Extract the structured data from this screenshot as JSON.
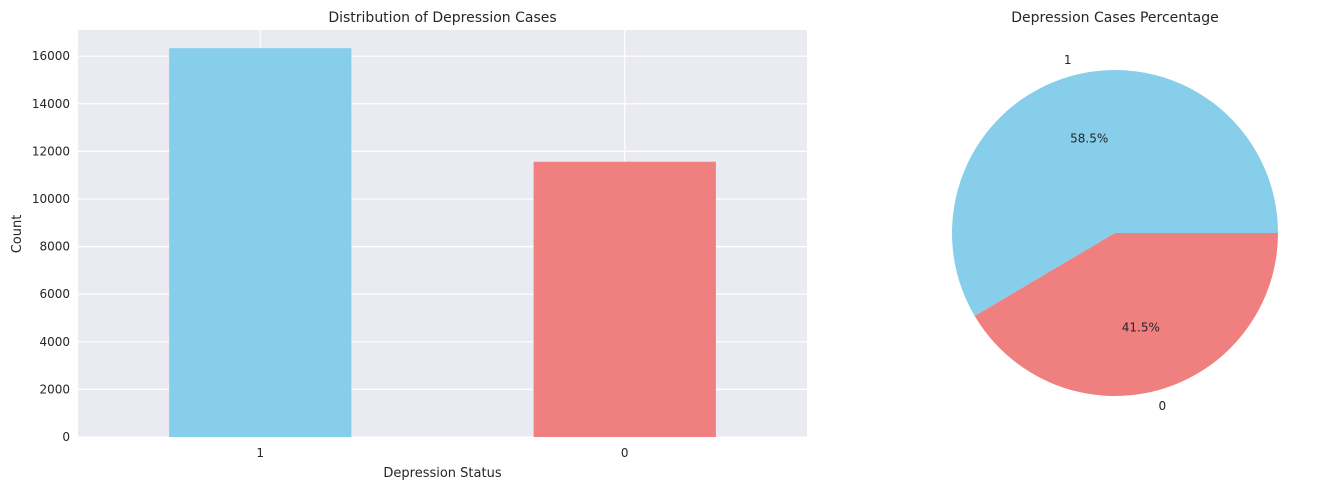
{
  "chart_data": [
    {
      "type": "bar",
      "title": "Distribution of Depression Cases",
      "xlabel": "Depression Status",
      "ylabel": "Count",
      "categories": [
        "1",
        "0"
      ],
      "values": [
        16336,
        11565
      ],
      "colors": [
        "#87CEEB",
        "#F08080"
      ],
      "ylim": [
        0,
        17100
      ],
      "yticks": [
        0,
        2000,
        4000,
        6000,
        8000,
        10000,
        12000,
        14000,
        16000
      ],
      "grid": true,
      "background": "#EAEAF2"
    },
    {
      "type": "pie",
      "title": "Depression Cases Percentage",
      "labels": [
        "1",
        "0"
      ],
      "values": [
        58.5,
        41.5
      ],
      "autopct": [
        "58.5%",
        "41.5%"
      ],
      "colors": [
        "#87CEEB",
        "#F08080"
      ]
    }
  ]
}
